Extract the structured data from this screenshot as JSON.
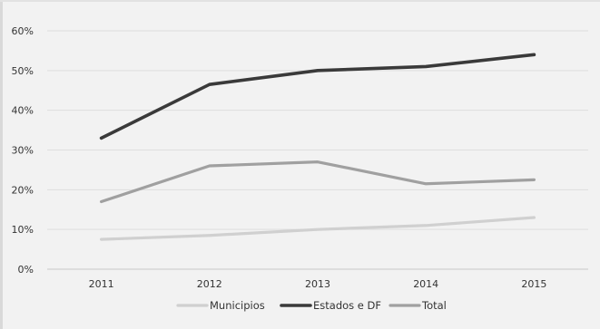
{
  "chart_data": {
    "type": "line",
    "title": "",
    "xlabel": "",
    "ylabel": "",
    "categories": [
      "2011",
      "2012",
      "2013",
      "2014",
      "2015"
    ],
    "ylim": [
      0,
      60
    ],
    "yticks": [
      0,
      10,
      20,
      30,
      40,
      50,
      60
    ],
    "ytick_labels": [
      "0%",
      "10%",
      "20%",
      "30%",
      "40%",
      "50%",
      "60%"
    ],
    "grid": "horizontal",
    "legend_position": "bottom",
    "series": [
      {
        "name": "Municipios",
        "values": [
          7.5,
          8.5,
          10,
          11,
          13
        ],
        "color": "#d0d0d0"
      },
      {
        "name": "Estados e DF",
        "values": [
          33,
          46.5,
          50,
          51,
          54
        ],
        "color": "#3a3a3a"
      },
      {
        "name": "Total",
        "values": [
          17,
          26,
          27,
          21.5,
          22.5
        ],
        "color": "#a0a0a0"
      }
    ]
  }
}
